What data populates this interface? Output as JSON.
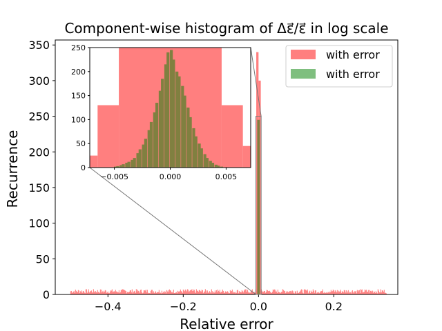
{
  "chart_data": {
    "type": "bar",
    "title": "Component-wise histogram of Δε⃗/ε⃗ in log scale",
    "xlabel": "Relative error",
    "ylabel": "Recurrence",
    "xlim": [
      -0.54,
      0.37
    ],
    "ylim": [
      0,
      357
    ],
    "xticks": [
      -0.4,
      -0.2,
      0.0,
      0.2
    ],
    "xtick_labels": [
      "−0.4",
      "−0.2",
      "0.0",
      "0.2"
    ],
    "yticks": [
      0,
      50,
      100,
      150,
      200,
      250,
      300,
      350
    ],
    "ytick_labels": [
      "0",
      "50",
      "100",
      "150",
      "200",
      "250",
      "300",
      "350"
    ],
    "legend_position": "top-right",
    "series": [
      {
        "name": "with error",
        "color": "#ff7f7f",
        "bins": [
          {
            "x0": -0.006,
            "x1": 0.0,
            "y": 340
          },
          {
            "x0": 0.0,
            "x1": 0.006,
            "y": 300
          }
        ],
        "tail_range": [
          -0.5,
          0.34
        ],
        "tail_level": 5
      },
      {
        "name": "with error",
        "color": "#7fbf7f",
        "bins": [
          {
            "x0": -0.0035,
            "x1": 0.0035,
            "y": 245
          }
        ]
      }
    ],
    "inset": {
      "xlim": [
        -0.0072,
        0.0072
      ],
      "ylim": [
        0,
        250
      ],
      "xticks": [
        -0.005,
        0.0,
        0.005
      ],
      "xtick_labels": [
        "−0.005",
        "0.000",
        "0.005"
      ],
      "yticks": [
        0,
        50,
        100,
        150,
        200,
        250
      ],
      "ytick_labels": [
        "0",
        "50",
        "100",
        "150",
        "200",
        "250"
      ],
      "zoom_box": {
        "x": [
          -0.007,
          0.007
        ],
        "y": [
          0,
          250
        ]
      },
      "red_bins": [
        {
          "x0": -0.0072,
          "x1": -0.0065,
          "y": 25
        },
        {
          "x0": -0.0065,
          "x1": -0.0046,
          "y": 130
        },
        {
          "x0": -0.0046,
          "x1": 0.0046,
          "y": 250
        },
        {
          "x0": 0.0046,
          "x1": 0.0065,
          "y": 130
        },
        {
          "x0": 0.0065,
          "x1": 0.0072,
          "y": 45
        }
      ],
      "green_bins": [
        {
          "x": -0.0049,
          "y": 2
        },
        {
          "x": -0.0047,
          "y": 3
        },
        {
          "x": -0.0044,
          "y": 5
        },
        {
          "x": -0.0042,
          "y": 7
        },
        {
          "x": -0.0039,
          "y": 10
        },
        {
          "x": -0.0037,
          "y": 12
        },
        {
          "x": -0.0034,
          "y": 16
        },
        {
          "x": -0.0032,
          "y": 20
        },
        {
          "x": -0.0029,
          "y": 30
        },
        {
          "x": -0.0027,
          "y": 38
        },
        {
          "x": -0.0024,
          "y": 48
        },
        {
          "x": -0.0022,
          "y": 60
        },
        {
          "x": -0.0019,
          "y": 78
        },
        {
          "x": -0.0017,
          "y": 95
        },
        {
          "x": -0.0014,
          "y": 115
        },
        {
          "x": -0.0012,
          "y": 135
        },
        {
          "x": -0.0009,
          "y": 160
        },
        {
          "x": -0.0007,
          "y": 185
        },
        {
          "x": -0.0004,
          "y": 215
        },
        {
          "x": -0.0002,
          "y": 240
        },
        {
          "x": 0.0001,
          "y": 245
        },
        {
          "x": 0.0003,
          "y": 225
        },
        {
          "x": 0.0006,
          "y": 200
        },
        {
          "x": 0.0008,
          "y": 190
        },
        {
          "x": 0.0011,
          "y": 170
        },
        {
          "x": 0.0013,
          "y": 150
        },
        {
          "x": 0.0016,
          "y": 125
        },
        {
          "x": 0.0018,
          "y": 105
        },
        {
          "x": 0.0021,
          "y": 82
        },
        {
          "x": 0.0023,
          "y": 65
        },
        {
          "x": 0.0026,
          "y": 50
        },
        {
          "x": 0.0028,
          "y": 40
        },
        {
          "x": 0.0031,
          "y": 28
        },
        {
          "x": 0.0033,
          "y": 20
        },
        {
          "x": 0.0036,
          "y": 14
        },
        {
          "x": 0.0038,
          "y": 10
        },
        {
          "x": 0.0041,
          "y": 6
        },
        {
          "x": 0.0043,
          "y": 4
        },
        {
          "x": 0.0046,
          "y": 2
        }
      ]
    }
  }
}
